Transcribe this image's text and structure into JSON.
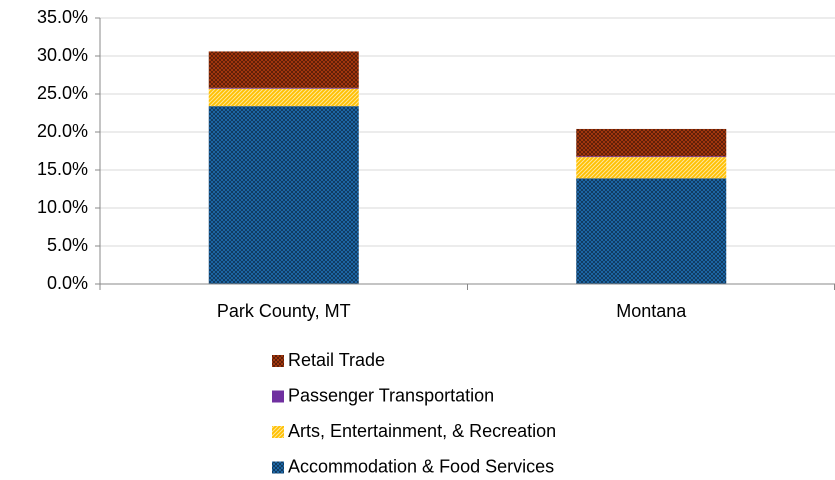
{
  "chart_data": {
    "type": "stacked-bar",
    "categories": [
      "Park County, MT",
      "Montana"
    ],
    "series": [
      {
        "name": "Accommodation & Food Services",
        "color": "#1f6fb5",
        "values": [
          23.4,
          13.9
        ]
      },
      {
        "name": "Arts, Entertainment, & Recreation",
        "color": "#ffc000",
        "values": [
          2.3,
          2.8
        ]
      },
      {
        "name": "Passenger Transportation",
        "color": "#7030a0",
        "values": [
          0.1,
          0.1
        ]
      },
      {
        "name": "Retail Trade",
        "color": "#b23b0e",
        "values": [
          4.8,
          3.6
        ]
      }
    ],
    "ylim": [
      0,
      35
    ],
    "yticks": [
      {
        "value": 0,
        "label": "0.0%"
      },
      {
        "value": 5,
        "label": "5.0%"
      },
      {
        "value": 10,
        "label": "10.0%"
      },
      {
        "value": 15,
        "label": "15.0%"
      },
      {
        "value": 20,
        "label": "20.0%"
      },
      {
        "value": 25,
        "label": "25.0%"
      },
      {
        "value": 30,
        "label": "30.0%"
      },
      {
        "value": 35,
        "label": "35.0%"
      }
    ],
    "grid": true,
    "legend": "bottom"
  }
}
